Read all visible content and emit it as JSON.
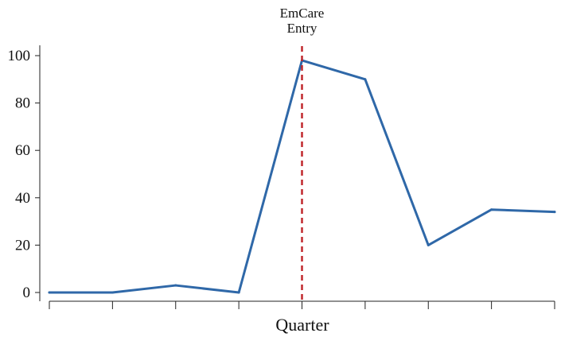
{
  "chart_data": {
    "type": "line",
    "title": "",
    "xlabel": "Quarter",
    "ylabel": "",
    "x": [
      1,
      2,
      3,
      4,
      5,
      6,
      7,
      8,
      9
    ],
    "series": [
      {
        "values": [
          0,
          0,
          3,
          0,
          98,
          90,
          20,
          35,
          34
        ],
        "color": "#2f68a8"
      }
    ],
    "ylim": [
      0,
      100
    ],
    "yticks": [
      0,
      20,
      40,
      60,
      80,
      100
    ],
    "ytick_labels": [
      "0",
      "20",
      "40",
      "60",
      "80",
      "100"
    ],
    "xlim": [
      1,
      9
    ],
    "grid": false,
    "annotation": {
      "x": 5,
      "lines": [
        "EmCare",
        "Entry"
      ],
      "color": "#c0282d",
      "style": "dashed"
    }
  }
}
